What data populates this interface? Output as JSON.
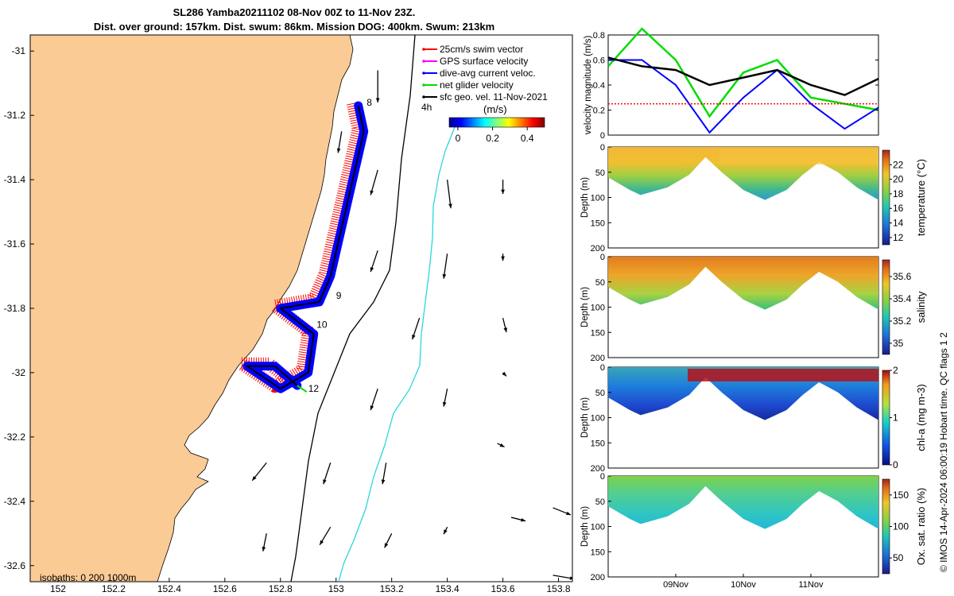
{
  "header": {
    "title_line1": "SL286 Yamba20211102 08-Nov 00Z to 11-Nov 23Z.",
    "title_line2": "Dist. over ground: 157km. Dist. swum: 86km. Mission DOG: 400km. Swum: 213km"
  },
  "credit": "© IMOS 14-Apr-2024 06:00:19 Hobart time. QC flags 1  2",
  "chart_data": [
    {
      "type": "scatter",
      "name": "map",
      "xlim": [
        151.9,
        153.85
      ],
      "ylim": [
        -32.65,
        -30.95
      ],
      "x_ticks": [
        "152",
        "152.2",
        "152.4",
        "152.6",
        "152.8",
        "153",
        "153.2",
        "153.4",
        "153.6",
        "153.8"
      ],
      "y_ticks": [
        "-31",
        "-31.2",
        "-31.4",
        "-31.6",
        "-31.8",
        "-32",
        "-32.2",
        "-32.4",
        "-32.6"
      ],
      "land_color": "#fbcb96",
      "legend": [
        {
          "label": "25cm/s swim vector",
          "color": "#ff0000"
        },
        {
          "label": "GPS surface velocity",
          "color": "#ff00ff"
        },
        {
          "label": "dive-avg current veloc.",
          "color": "#0000ff"
        },
        {
          "label": "net glider velocity",
          "color": "#00dd00"
        },
        {
          "label": "sfc geo. vel. 11-Nov-2021",
          "color": "#000000"
        }
      ],
      "scale_label": "4h",
      "colorbar": {
        "title": "(m/s)",
        "ticks": [
          "0",
          "0.2",
          "0.4"
        ]
      },
      "isobath_label": "isobaths: 0   200  1000m",
      "track": [
        [
          153.08,
          -31.17
        ],
        [
          153.1,
          -31.25
        ],
        [
          153.06,
          -31.4
        ],
        [
          153.02,
          -31.55
        ],
        [
          152.98,
          -31.7
        ],
        [
          152.94,
          -31.78
        ],
        [
          152.8,
          -31.8
        ],
        [
          152.92,
          -31.88
        ],
        [
          152.9,
          -32.0
        ],
        [
          152.8,
          -32.05
        ],
        [
          152.68,
          -31.98
        ],
        [
          152.78,
          -31.98
        ],
        [
          152.86,
          -32.04
        ]
      ],
      "day_labels": [
        {
          "text": "8",
          "lon": 153.11,
          "lat": -31.17
        },
        {
          "text": "9",
          "lon": 153.0,
          "lat": -31.77
        },
        {
          "text": "10",
          "lon": 152.93,
          "lat": -31.86
        },
        {
          "text": "12",
          "lon": 152.9,
          "lat": -32.06
        }
      ],
      "surface_vectors": [
        {
          "lon": 153.15,
          "lat": -31.06,
          "u": 0.0,
          "v": -0.45
        },
        {
          "lon": 153.02,
          "lat": -31.25,
          "u": -0.05,
          "v": -0.3
        },
        {
          "lon": 153.15,
          "lat": -31.37,
          "u": -0.1,
          "v": -0.35
        },
        {
          "lon": 153.4,
          "lat": -31.4,
          "u": 0.05,
          "v": -0.4
        },
        {
          "lon": 153.6,
          "lat": -31.4,
          "u": 0.0,
          "v": -0.2
        },
        {
          "lon": 153.15,
          "lat": -31.62,
          "u": -0.1,
          "v": -0.3
        },
        {
          "lon": 153.4,
          "lat": -31.63,
          "u": -0.05,
          "v": -0.35
        },
        {
          "lon": 153.6,
          "lat": -31.63,
          "u": 0.0,
          "v": -0.1
        },
        {
          "lon": 153.3,
          "lat": -31.83,
          "u": -0.1,
          "v": -0.3
        },
        {
          "lon": 153.6,
          "lat": -31.83,
          "u": 0.05,
          "v": -0.2
        },
        {
          "lon": 153.15,
          "lat": -32.05,
          "u": -0.1,
          "v": -0.3
        },
        {
          "lon": 153.4,
          "lat": -32.05,
          "u": -0.05,
          "v": -0.25
        },
        {
          "lon": 153.6,
          "lat": -32.0,
          "u": 0.05,
          "v": -0.05
        },
        {
          "lon": 152.75,
          "lat": -32.28,
          "u": -0.2,
          "v": -0.25
        },
        {
          "lon": 152.98,
          "lat": -32.28,
          "u": -0.1,
          "v": -0.3
        },
        {
          "lon": 153.18,
          "lat": -32.28,
          "u": -0.05,
          "v": -0.3
        },
        {
          "lon": 153.58,
          "lat": -32.22,
          "u": 0.1,
          "v": -0.05
        },
        {
          "lon": 152.75,
          "lat": -32.5,
          "u": -0.05,
          "v": -0.25
        },
        {
          "lon": 152.98,
          "lat": -32.48,
          "u": -0.15,
          "v": -0.25
        },
        {
          "lon": 153.2,
          "lat": -32.5,
          "u": -0.1,
          "v": -0.2
        },
        {
          "lon": 153.4,
          "lat": -32.48,
          "u": -0.05,
          "v": -0.1
        },
        {
          "lon": 153.63,
          "lat": -32.45,
          "u": 0.2,
          "v": -0.05
        },
        {
          "lon": 153.78,
          "lat": -32.42,
          "u": 0.25,
          "v": -0.1
        },
        {
          "lon": 153.78,
          "lat": -32.63,
          "u": 0.3,
          "v": -0.05
        }
      ]
    },
    {
      "type": "line",
      "name": "velocity",
      "ylabel": "velocity magnitude (m/s)",
      "ylim": [
        0,
        0.8
      ],
      "y_ticks": [
        "0",
        "0.2",
        "0.4",
        "0.6",
        "0.8"
      ],
      "x": [
        0,
        0.5,
        1,
        1.5,
        2,
        2.5,
        3,
        3.5,
        4
      ],
      "series": [
        {
          "color": "#00dd00",
          "values": [
            0.55,
            0.85,
            0.6,
            0.15,
            0.5,
            0.6,
            0.3,
            0.25,
            0.2
          ]
        },
        {
          "color": "#0000ff",
          "values": [
            0.6,
            0.6,
            0.4,
            0.02,
            0.3,
            0.52,
            0.25,
            0.05,
            0.22
          ]
        },
        {
          "color": "#000000",
          "values": [
            0.62,
            0.55,
            0.52,
            0.4,
            0.46,
            0.52,
            0.4,
            0.32,
            0.45
          ]
        },
        {
          "color": "#ff0000",
          "values": [
            0.25,
            0.25,
            0.25,
            0.25,
            0.25,
            0.25,
            0.25,
            0.25,
            0.25
          ]
        }
      ],
      "xlim": [
        0,
        4
      ]
    },
    {
      "type": "heatmap",
      "name": "temperature",
      "ylabel": "Depth (m)",
      "cblabel": "temperature (°C)",
      "y_ticks": [
        "0",
        "50",
        "100",
        "150",
        "200"
      ],
      "cb_ticks": [
        "12",
        "14",
        "16",
        "18",
        "20",
        "22"
      ],
      "cb_range": [
        11,
        24
      ]
    },
    {
      "type": "heatmap",
      "name": "salinity",
      "ylabel": "Depth (m)",
      "cblabel": "salinity",
      "y_ticks": [
        "0",
        "50",
        "100",
        "150",
        "200"
      ],
      "cb_ticks": [
        "35",
        "35.2",
        "35.4",
        "35.6"
      ],
      "cb_range": [
        34.9,
        35.75
      ]
    },
    {
      "type": "heatmap",
      "name": "chla",
      "ylabel": "Depth (m)",
      "cblabel": "chl-a (mg m-3)",
      "y_ticks": [
        "0",
        "50",
        "100",
        "150",
        "200"
      ],
      "cb_ticks": [
        "0",
        "1",
        "2"
      ],
      "cb_range": [
        0,
        2
      ]
    },
    {
      "type": "heatmap",
      "name": "oxygen",
      "ylabel": "Depth (m)",
      "cblabel": "Ox. sat. ratio (%)",
      "y_ticks": [
        "0",
        "50",
        "100",
        "150",
        "200"
      ],
      "cb_ticks": [
        "50",
        "100",
        "150"
      ],
      "cb_range": [
        25,
        175
      ],
      "x_ticks": [
        "09Nov",
        "10Nov",
        "11Nov"
      ]
    }
  ]
}
